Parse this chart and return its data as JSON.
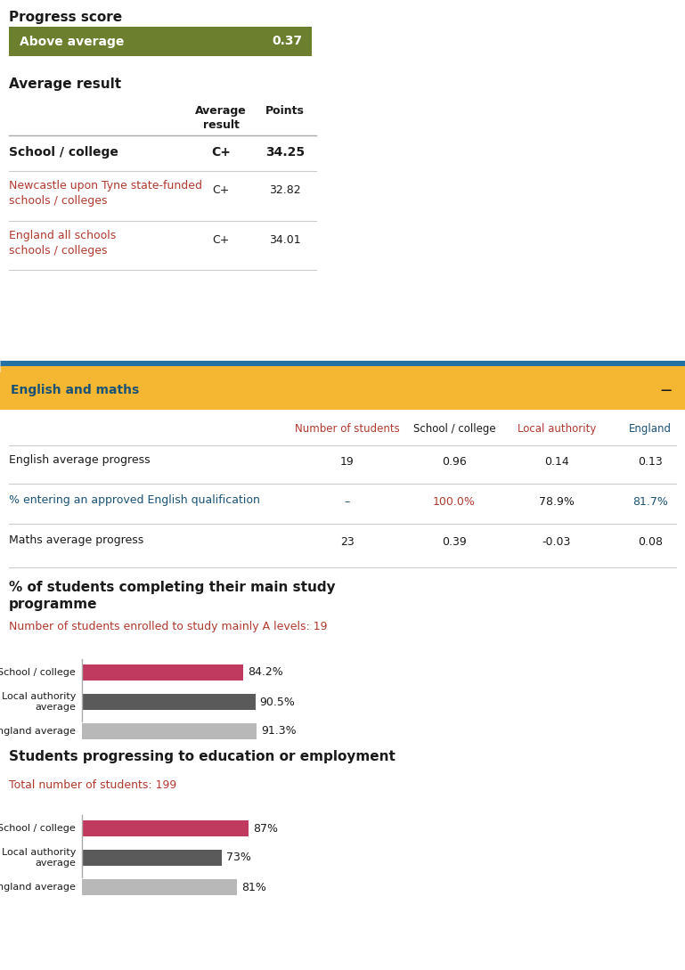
{
  "progress_score_label": "Progress score",
  "progress_bar_text": "Above average",
  "progress_bar_value": "0.37",
  "progress_bar_color": "#6b7f2e",
  "progress_bar_text_color": "#ffffff",
  "avg_result_title": "Average result",
  "section2_bg_color": "#f5b731",
  "section2_title": "English and maths",
  "section2_title_color": "#1a5276",
  "em_table_header_colors": [
    "#1a1a1a",
    "#b03a2e",
    "#1a1a1a",
    "#b03a2e",
    "#1a5276"
  ],
  "em_table_rows": [
    {
      "label": "English average progress",
      "num": "19",
      "school": "0.96",
      "la": "0.14",
      "england": "0.13",
      "label_color": "#1a1a1a",
      "num_color": "#1a1a1a",
      "school_color": "#1a1a1a",
      "la_color": "#1a1a1a",
      "eng_color": "#1a1a1a"
    },
    {
      "label": "% entering an approved English qualification",
      "num": "–",
      "school": "100.0%",
      "la": "78.9%",
      "england": "81.7%",
      "label_color": "#1a5276",
      "num_color": "#1a5276",
      "school_color": "#b03a2e",
      "la_color": "#1a1a1a",
      "eng_color": "#1a5276"
    },
    {
      "label": "Maths average progress",
      "num": "23",
      "school": "0.39",
      "la": "-0.03",
      "england": "0.08",
      "label_color": "#1a1a1a",
      "num_color": "#1a1a1a",
      "school_color": "#1a1a1a",
      "la_color": "#1a1a1a",
      "eng_color": "#1a1a1a"
    }
  ],
  "completion_title": "% of students completing their main study\nprogramme",
  "completion_subtitle": "Number of students enrolled to study mainly A levels: 19",
  "completion_subtitle_color": "#b03a2e",
  "completion_bars": [
    {
      "label": "School / college",
      "value": 84.2,
      "color": "#c0395e",
      "text": "84.2%"
    },
    {
      "label": "Local authority\naverage",
      "value": 90.5,
      "color": "#5a5a5a",
      "text": "90.5%"
    },
    {
      "label": "England average",
      "value": 91.3,
      "color": "#b8b8b8",
      "text": "91.3%"
    }
  ],
  "progression_title": "Students progressing to education or employment",
  "progression_subtitle": "Total number of students: 199",
  "progression_subtitle_color": "#b03a2e",
  "progression_bars": [
    {
      "label": "School / college",
      "value": 87,
      "color": "#c0395e",
      "text": "87%"
    },
    {
      "label": "Local authority\naverage",
      "value": 73,
      "color": "#5a5a5a",
      "text": "73%"
    },
    {
      "label": "England average",
      "value": 81,
      "color": "#b8b8b8",
      "text": "81%"
    }
  ],
  "bar_max": 100,
  "bg_color": "#ffffff",
  "text_color": "#1a1a1a",
  "line_color": "#cccccc",
  "blue_line_color": "#2471a3",
  "gold_line_color": "#f5b731"
}
